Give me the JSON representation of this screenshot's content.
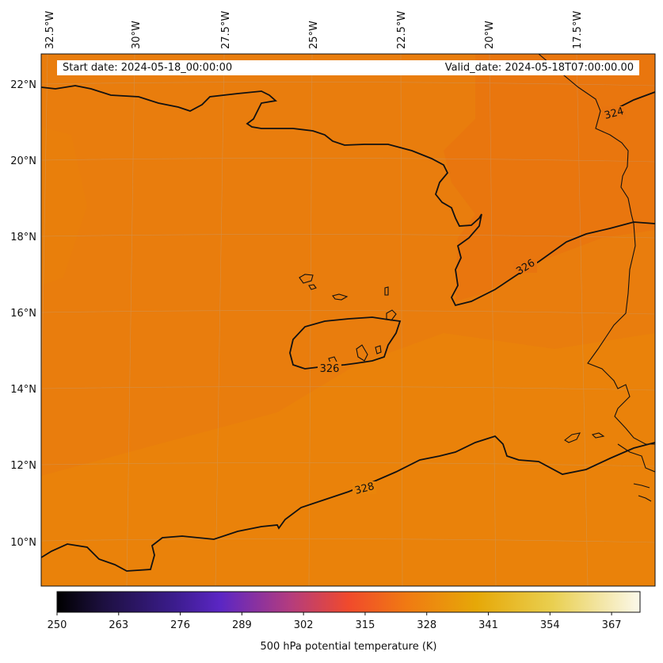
{
  "header": {
    "start_date": "Start date: 2024-05-18_00:00:00",
    "valid_date": "Valid_date: 2024-05-18T07:00:00.00"
  },
  "map": {
    "field_color": "#e97d0d",
    "field_color_dark": "#e8740f",
    "field_color_light": "#ea850a",
    "lon_labels": [
      "32.5°W",
      "30°W",
      "27.5°W",
      "25°W",
      "22.5°W",
      "20°W",
      "17.5°W"
    ],
    "lat_labels": [
      "22°N",
      "20°N",
      "18°N",
      "16°N",
      "14°N",
      "12°N",
      "10°N"
    ],
    "contour_labels": [
      "324",
      "326",
      "326",
      "328"
    ]
  },
  "colorbar": {
    "ticks": [
      "250",
      "263",
      "276",
      "289",
      "302",
      "315",
      "328",
      "341",
      "354",
      "367"
    ],
    "label": "500 hPa potential temperature (K)",
    "range": [
      250,
      373
    ]
  }
}
